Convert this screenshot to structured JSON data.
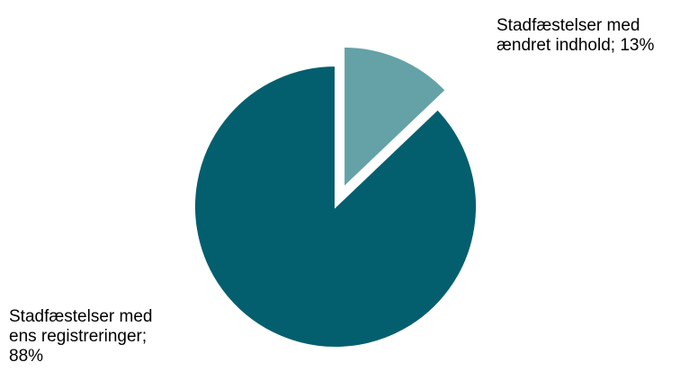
{
  "chart_data": {
    "type": "pie",
    "exploded_slice": 1,
    "slices": [
      {
        "name": "Stadfæstelser med ens registreringer",
        "value": 88,
        "label": "Stadfæstelser med\nens registreringer;\n88%",
        "color": "#035f6e"
      },
      {
        "name": "Stadfæstelser med ændret indhold",
        "value": 13,
        "label": "Stadfæstelser med\nændret indhold; 13%",
        "color": "#64a2a8"
      }
    ]
  }
}
